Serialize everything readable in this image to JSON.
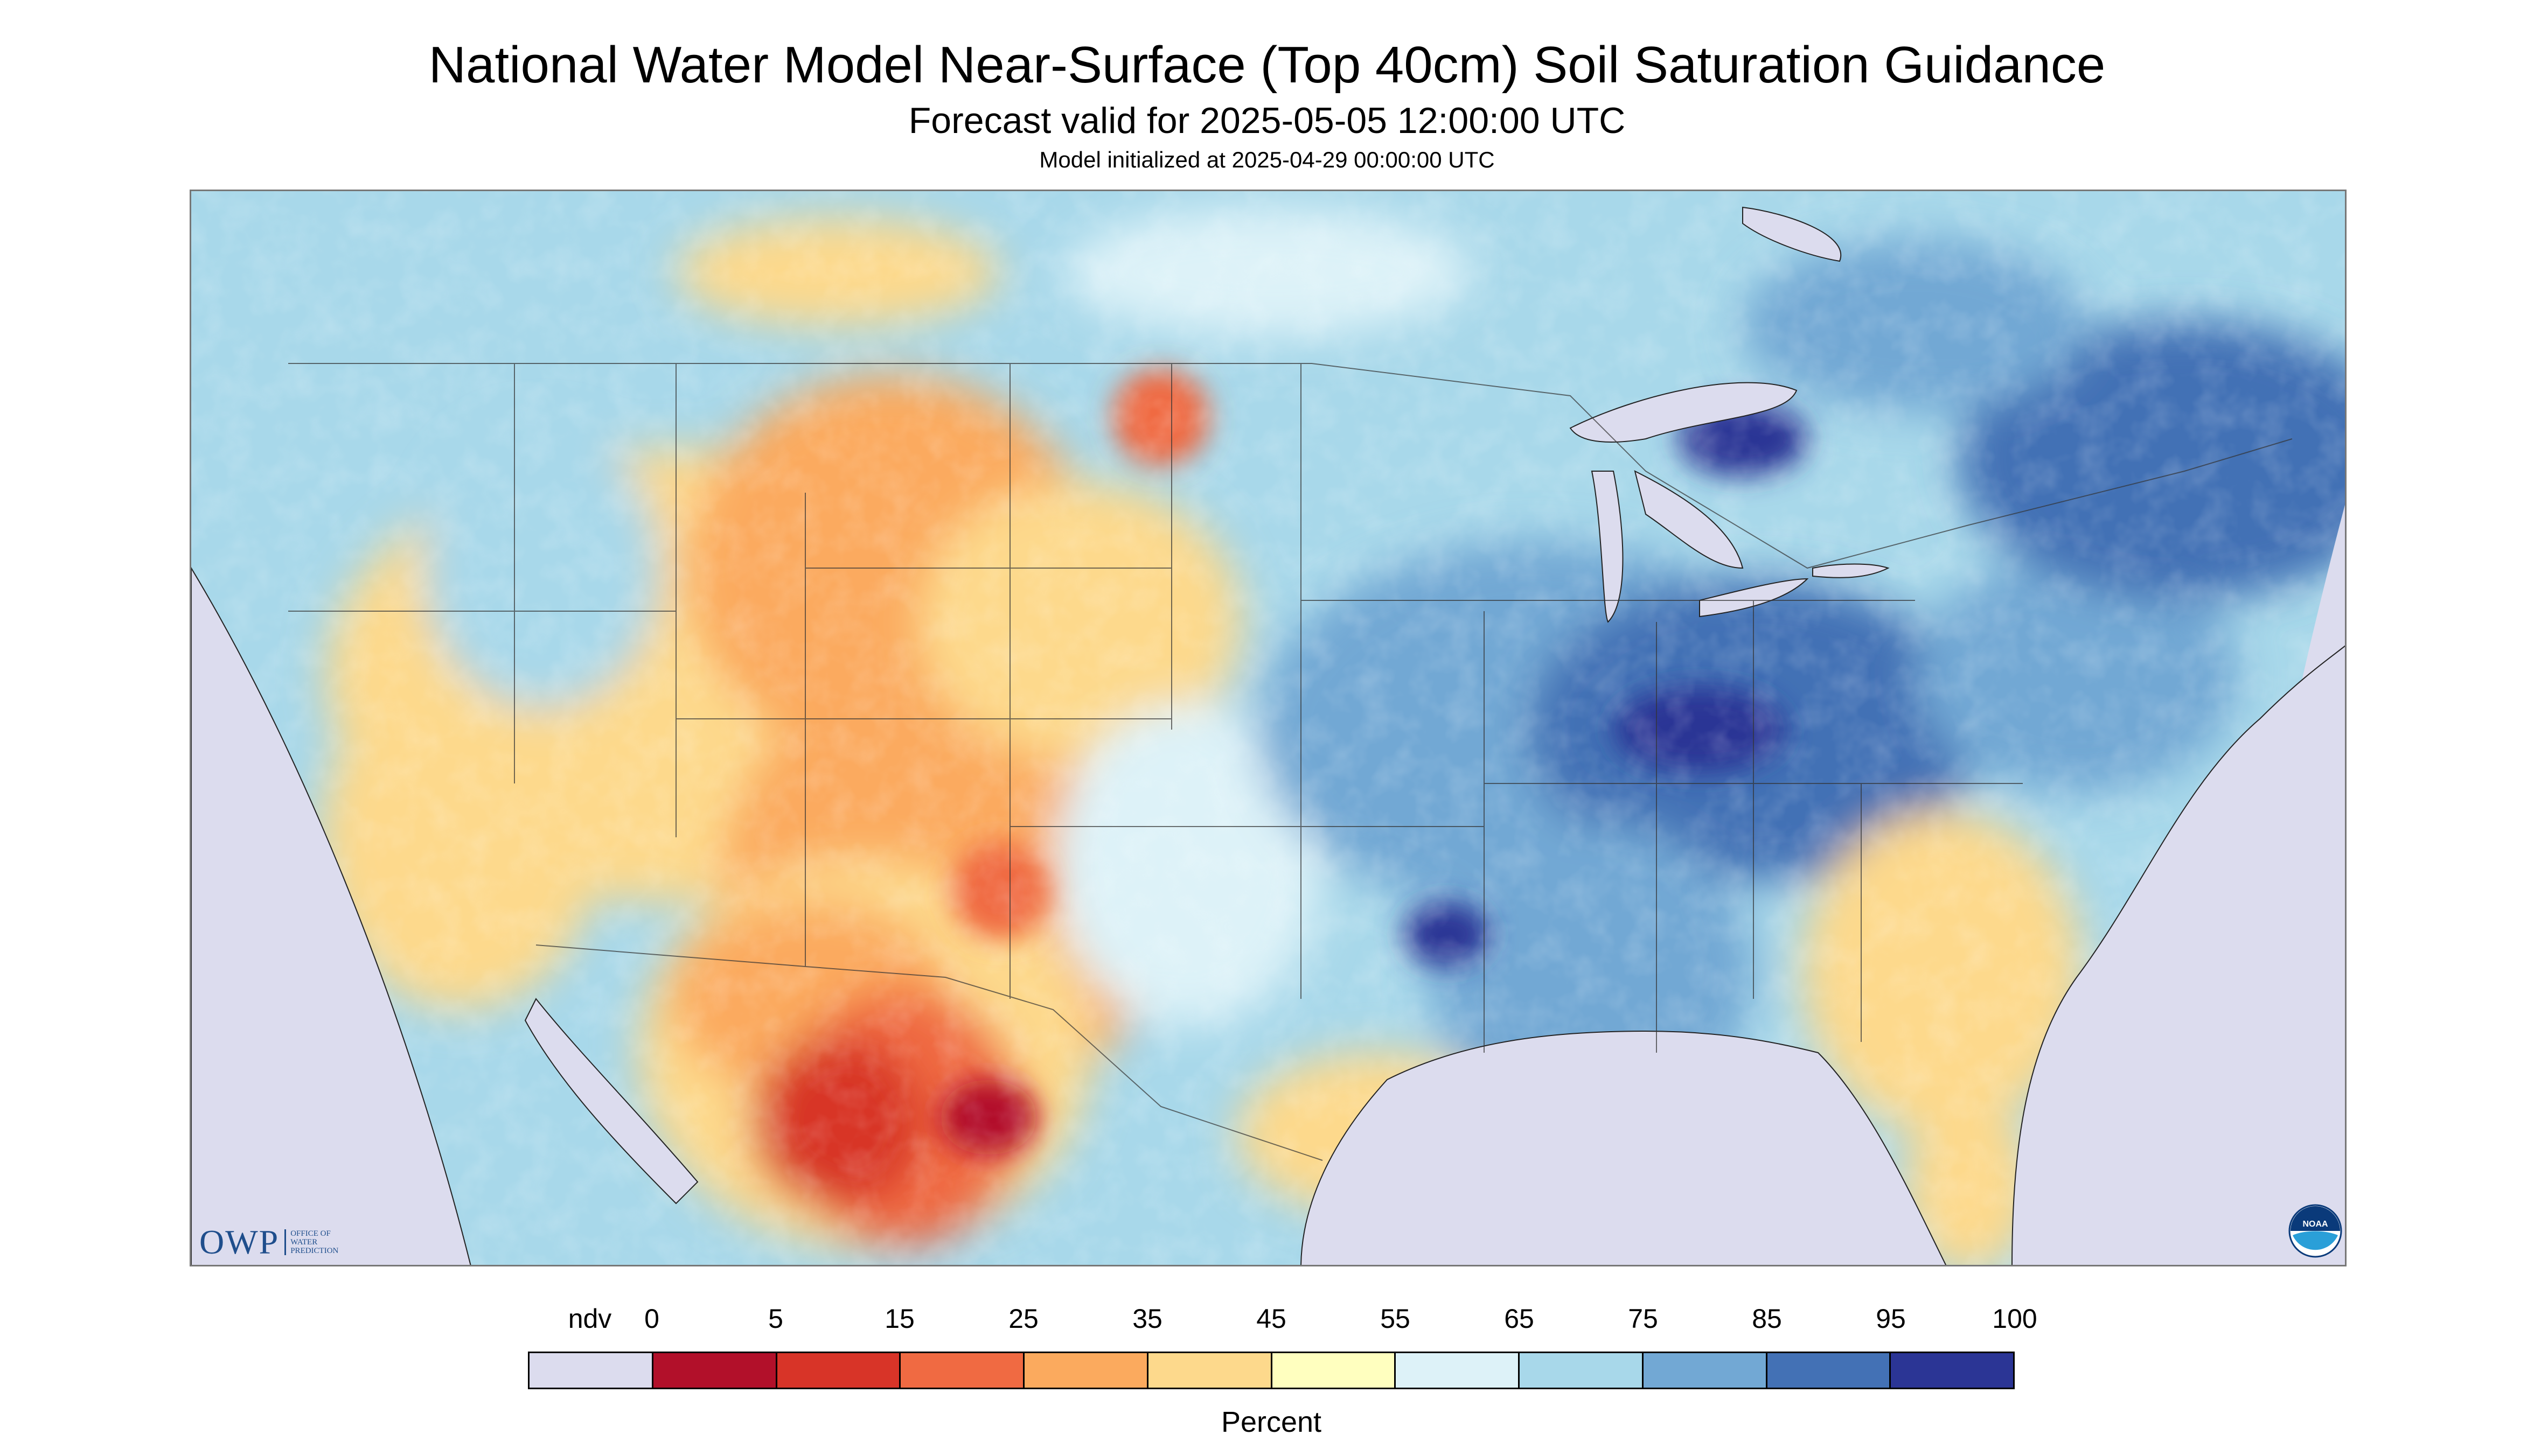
{
  "title": "National Water Model Near-Surface (Top 40cm) Soil Saturation Guidance",
  "subtitle": "Forecast valid for 2025-05-05 12:00:00 UTC",
  "init_line": "Model initialized at 2025-04-29 00:00:00 UTC",
  "logos": {
    "owp_mark": "OWP",
    "owp_name_lines": [
      "OFFICE OF",
      "WATER",
      "PREDICTION"
    ],
    "noaa_text": "NOAA"
  },
  "legend": {
    "units": "Percent",
    "labels": [
      "ndv",
      "0",
      "5",
      "15",
      "25",
      "35",
      "45",
      "55",
      "65",
      "75",
      "85",
      "95",
      "100"
    ],
    "colors": [
      "#dcdcee",
      "#b2102a",
      "#d83428",
      "#f06a42",
      "#fbaa5e",
      "#fdd98c",
      "#ffffbf",
      "#ddf2f8",
      "#a8d8ea",
      "#72a8d4",
      "#4371b5",
      "#2b3595"
    ]
  },
  "map": {
    "background_color": "#dcdcee",
    "water_color": "#dcdcee",
    "border_color": "#333333"
  }
}
